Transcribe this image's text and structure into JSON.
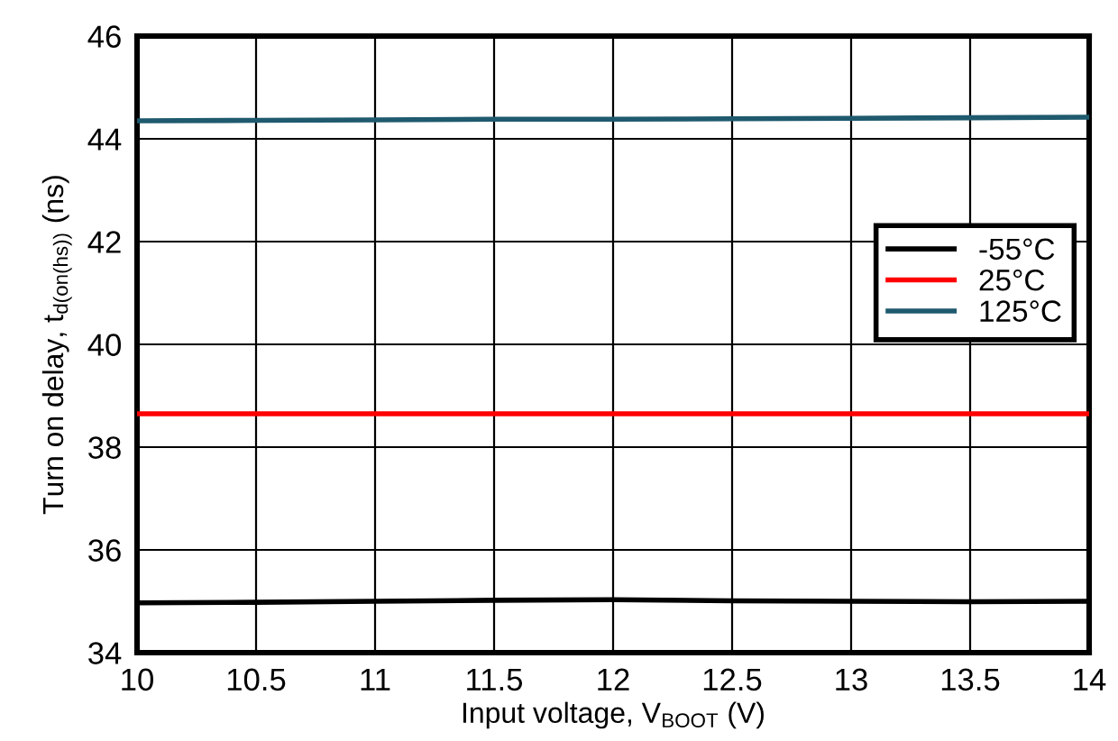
{
  "chart_data": {
    "type": "line",
    "xlabel": "Input voltage, V$_{BOOT}$ (V)",
    "ylabel": "Turn on delay, t$_{d(on(hs))}$ (ns)",
    "x": [
      10,
      10.5,
      11,
      11.5,
      12,
      12.5,
      13,
      13.5,
      14
    ],
    "series": [
      {
        "name": "-55°C",
        "color": "#000000",
        "values": [
          34.97,
          34.98,
          35.0,
          35.02,
          35.03,
          35.01,
          35.0,
          34.99,
          35.0
        ]
      },
      {
        "name": "25°C",
        "color": "#ff0000",
        "values": [
          38.65,
          38.65,
          38.65,
          38.65,
          38.65,
          38.65,
          38.65,
          38.65,
          38.65
        ]
      },
      {
        "name": "125°C",
        "color": "#1f5a6e",
        "values": [
          44.35,
          44.36,
          44.37,
          44.38,
          44.38,
          44.39,
          44.4,
          44.41,
          44.42
        ]
      }
    ],
    "xlim": [
      10,
      14
    ],
    "ylim": [
      34,
      46
    ],
    "xticks": [
      10,
      10.5,
      11,
      11.5,
      12,
      12.5,
      13,
      13.5,
      14
    ],
    "yticks": [
      34,
      36,
      38,
      40,
      42,
      44,
      46
    ],
    "grid": true,
    "legend": "right",
    "marker": "none",
    "line_style": "solid"
  }
}
